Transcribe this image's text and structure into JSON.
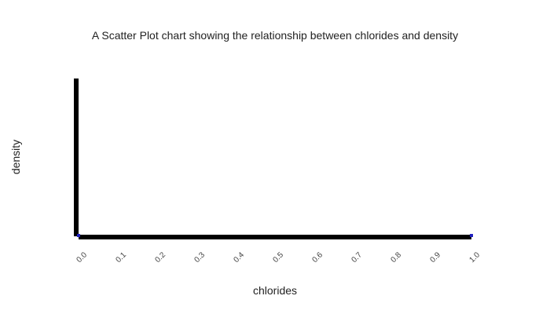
{
  "chart_data": {
    "type": "scatter",
    "title": "A Scatter Plot chart showing the relationship between chlorides and density",
    "xlabel": "chlorides",
    "ylabel": "density",
    "xlim": [
      0.0,
      1.0
    ],
    "x_ticks": [
      "0.0",
      "0.1",
      "0.2",
      "0.3",
      "0.4",
      "0.5",
      "0.6",
      "0.7",
      "0.8",
      "0.9",
      "1.0"
    ],
    "y_ticks": [],
    "grid": false,
    "legend": "none",
    "series": [
      {
        "points": [
          {
            "x": 0.0,
            "y": 0.0
          },
          {
            "x": 1.0,
            "y": 0.0
          }
        ]
      }
    ],
    "colors": {
      "axis": "#000000",
      "point": "#1f1fbf",
      "text": "#222222",
      "tick_text": "#444444"
    }
  }
}
